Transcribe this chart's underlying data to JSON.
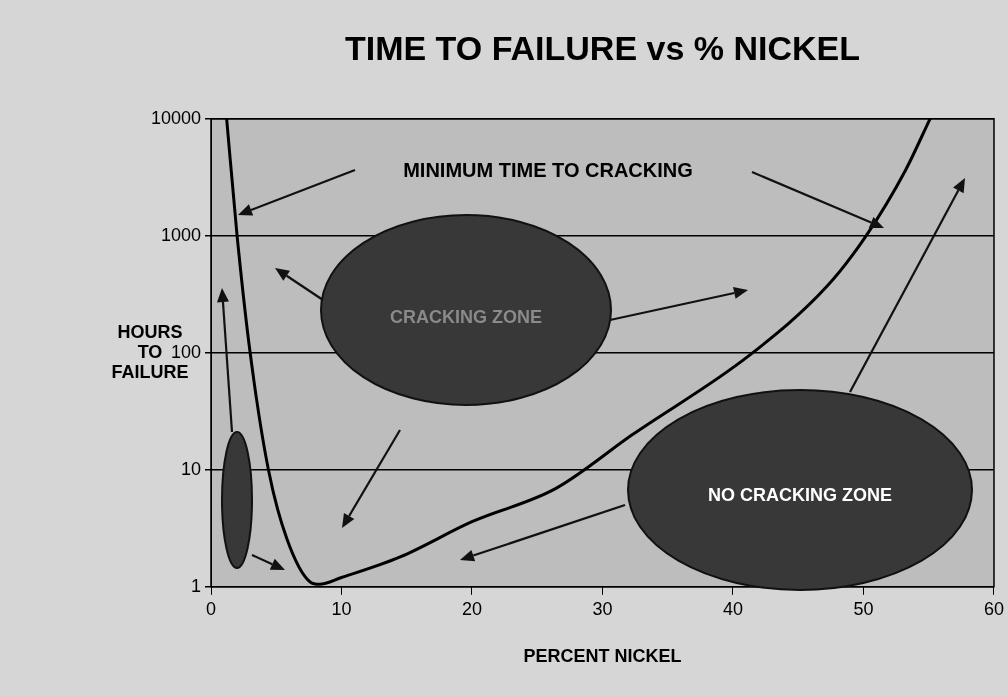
{
  "chart_data": {
    "type": "line",
    "title": "TIME TO FAILURE vs % NICKEL",
    "xlabel": "PERCENT NICKEL",
    "ylabel": "HOURS TO FAILURE",
    "x": [
      1.2,
      2.0,
      3.0,
      4.4,
      5.8,
      7.6,
      8.3,
      10,
      14.5,
      20,
      26.4,
      32.3,
      41.2,
      47.2,
      50.2,
      53.2,
      55.1
    ],
    "series": [
      {
        "color": "#000000",
        "values": [
          10000,
          1000,
          100,
          10,
          2.6,
          1.1,
          1.05,
          1.2,
          1.8,
          3.6,
          6.9,
          20,
          94,
          370,
          1000,
          3600,
          10000
        ]
      }
    ],
    "xlim": [
      0,
      60
    ],
    "xticks": [
      0,
      10,
      20,
      30,
      40,
      50,
      60
    ],
    "ylim": [
      1,
      10000
    ],
    "yticks": [
      1,
      10,
      100,
      1000,
      10000
    ],
    "log": "y",
    "grid": "y",
    "legend": false,
    "marker": "none",
    "line_style": "solid",
    "annotations": [
      "MINIMUM TIME TO CRACKING",
      "CRACKING ZONE",
      "NO CRACKING ZONE"
    ]
  }
}
